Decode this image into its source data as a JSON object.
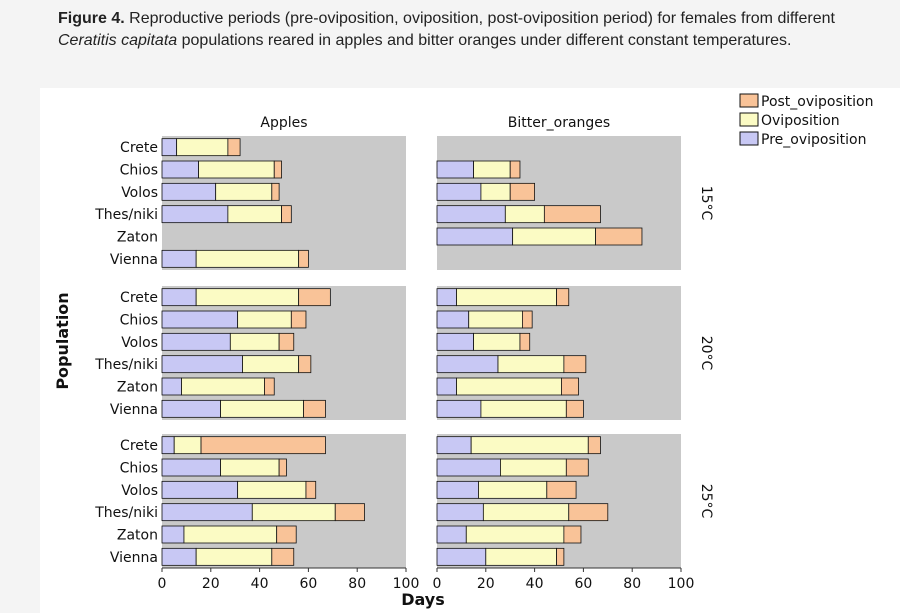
{
  "caption": {
    "label": "Figure 4.",
    "text_part1": " Reproductive periods (pre-oviposition, oviposition, post-oviposition period) for females from different ",
    "species": "Ceratitis capitata",
    "text_part2": " populations reared in apples and bitter oranges under different constant temperatures."
  },
  "colors": {
    "Pre_oviposition": "#c8c8f4",
    "Oviposition": "#fbfbc4",
    "Post_oviposition": "#f9c398",
    "panel_bg": "#c9c9c9",
    "bar_stroke": "#111111"
  },
  "chart_data": {
    "type": "bar",
    "orientation": "horizontal",
    "stacked": true,
    "xlabel": "Days",
    "ylabel": "Population",
    "xlim": [
      0,
      100
    ],
    "xticks": [
      0,
      20,
      40,
      60,
      80,
      100
    ],
    "columns": [
      "Apples",
      "Bitter_oranges"
    ],
    "rows": [
      "15°C",
      "20°C",
      "25°C"
    ],
    "categories": [
      "Crete",
      "Chios",
      "Volos",
      "Thes/niki",
      "Zaton",
      "Vienna"
    ],
    "legend": {
      "position": "top-right",
      "entries": [
        "Post_oviposition",
        "Oviposition",
        "Pre_oviposition"
      ]
    },
    "panels": [
      {
        "column": "Apples",
        "row": "15°C",
        "series": [
          {
            "name": "Pre_oviposition",
            "values": [
              6,
              15,
              22,
              27,
              null,
              14
            ]
          },
          {
            "name": "Oviposition",
            "values": [
              21,
              31,
              23,
              22,
              null,
              42
            ]
          },
          {
            "name": "Post_oviposition",
            "values": [
              5,
              3,
              3,
              4,
              null,
              4
            ]
          }
        ]
      },
      {
        "column": "Bitter_oranges",
        "row": "15°C",
        "series": [
          {
            "name": "Pre_oviposition",
            "values": [
              null,
              15,
              18,
              28,
              31,
              null
            ]
          },
          {
            "name": "Oviposition",
            "values": [
              null,
              15,
              12,
              16,
              34,
              null
            ]
          },
          {
            "name": "Post_oviposition",
            "values": [
              null,
              4,
              10,
              23,
              19,
              null
            ]
          }
        ]
      },
      {
        "column": "Apples",
        "row": "20°C",
        "series": [
          {
            "name": "Pre_oviposition",
            "values": [
              14,
              31,
              28,
              33,
              8,
              24
            ]
          },
          {
            "name": "Oviposition",
            "values": [
              42,
              22,
              20,
              23,
              34,
              34
            ]
          },
          {
            "name": "Post_oviposition",
            "values": [
              13,
              6,
              6,
              5,
              4,
              9
            ]
          }
        ]
      },
      {
        "column": "Bitter_oranges",
        "row": "20°C",
        "series": [
          {
            "name": "Pre_oviposition",
            "values": [
              8,
              13,
              15,
              25,
              8,
              18
            ]
          },
          {
            "name": "Oviposition",
            "values": [
              41,
              22,
              19,
              27,
              43,
              35
            ]
          },
          {
            "name": "Post_oviposition",
            "values": [
              5,
              4,
              4,
              9,
              7,
              7
            ]
          }
        ]
      },
      {
        "column": "Apples",
        "row": "25°C",
        "series": [
          {
            "name": "Pre_oviposition",
            "values": [
              5,
              24,
              31,
              37,
              9,
              14
            ]
          },
          {
            "name": "Oviposition",
            "values": [
              11,
              24,
              28,
              34,
              38,
              31
            ]
          },
          {
            "name": "Post_oviposition",
            "values": [
              51,
              3,
              4,
              12,
              8,
              9
            ]
          }
        ]
      },
      {
        "column": "Bitter_oranges",
        "row": "25°C",
        "series": [
          {
            "name": "Pre_oviposition",
            "values": [
              14,
              26,
              17,
              19,
              12,
              20
            ]
          },
          {
            "name": "Oviposition",
            "values": [
              48,
              27,
              28,
              35,
              40,
              29
            ]
          },
          {
            "name": "Post_oviposition",
            "values": [
              5,
              9,
              12,
              16,
              7,
              3
            ]
          }
        ]
      }
    ]
  }
}
